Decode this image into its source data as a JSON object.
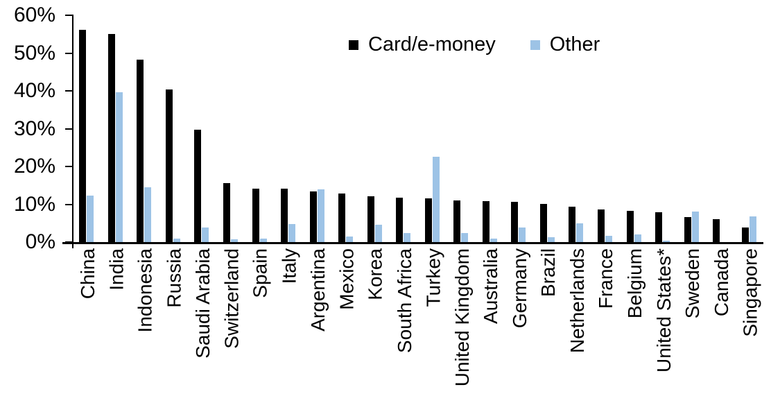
{
  "chart_data": {
    "type": "bar",
    "title": "",
    "xlabel": "",
    "ylabel": "",
    "ylim": [
      0,
      60
    ],
    "ytick_labels": [
      "60%",
      "50%",
      "40%",
      "30%",
      "20%",
      "10%",
      "0%"
    ],
    "grid": false,
    "legend_position": "top-center",
    "categories": [
      "China",
      "India",
      "Indonesia",
      "Russia",
      "Saudi Arabia",
      "Switzerland",
      "Spain",
      "Italy",
      "Argentina",
      "Mexico",
      "Korea",
      "South Africa",
      "Turkey",
      "United Kingdom",
      "Australia",
      "Germany",
      "Brazil",
      "Netherlands",
      "France",
      "Belgium",
      "United States*",
      "Sweden",
      "Canada",
      "Singapore"
    ],
    "series": [
      {
        "name": "Card/e-money",
        "color": "#000000",
        "values": [
          56.2,
          55.0,
          48.2,
          40.4,
          29.8,
          15.6,
          14.1,
          14.1,
          13.4,
          12.9,
          12.2,
          11.8,
          11.6,
          11.0,
          10.8,
          10.6,
          10.0,
          9.3,
          8.6,
          8.2,
          7.9,
          6.6,
          6.0,
          3.9
        ]
      },
      {
        "name": "Other",
        "color": "#9DC3E6",
        "values": [
          12.3,
          39.7,
          14.5,
          1.0,
          3.9,
          0.8,
          1.0,
          4.7,
          13.9,
          1.4,
          4.6,
          2.4,
          22.6,
          2.4,
          1.0,
          3.9,
          1.3,
          4.9,
          1.7,
          2.1,
          0.4,
          8.1,
          0.0,
          6.7
        ]
      }
    ]
  },
  "legend": {
    "card_label": "Card/e-money",
    "other_label": "Other"
  },
  "colors": {
    "card": "#000000",
    "other": "#9DC3E6",
    "axis": "#000000",
    "background": "#ffffff"
  }
}
